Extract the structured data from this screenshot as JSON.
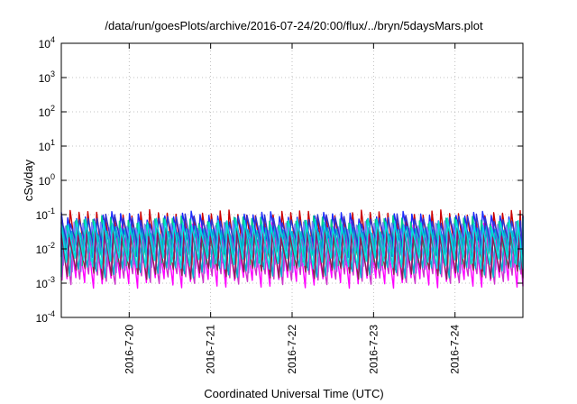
{
  "chart_data": {
    "type": "line",
    "title": "/data/run/goesPlots/archive/2016-07-24/20:00/flux/../bryn/5daysMars.plot",
    "xlabel": "Coordinated Universal Time (UTC)",
    "ylabel": "cSv/day",
    "yscale": "log",
    "ylim": [
      0.0001,
      10000
    ],
    "xlim": [
      "2016-07-19T04:00",
      "2016-07-24T20:00"
    ],
    "grid": true,
    "x_ticks": [
      "2016-7-20",
      "2016-7-21",
      "2016-7-22",
      "2016-7-23",
      "2016-7-24"
    ],
    "y_ticks": [
      {
        "base": "10",
        "exp": "-4"
      },
      {
        "base": "10",
        "exp": "-3"
      },
      {
        "base": "10",
        "exp": "-2"
      },
      {
        "base": "10",
        "exp": "-1"
      },
      {
        "base": "10",
        "exp": "0"
      },
      {
        "base": "10",
        "exp": "1"
      },
      {
        "base": "10",
        "exp": "2"
      },
      {
        "base": "10",
        "exp": "3"
      },
      {
        "base": "10",
        "exp": "4"
      }
    ],
    "y_tick_values": [
      0.0001,
      0.001,
      0.01,
      0.1,
      1,
      10,
      100,
      1000,
      10000
    ],
    "sawtooth_period_hours": 2.6,
    "series": [
      {
        "color": "#cc0000",
        "peak": 0.105,
        "trough": 0.0035
      },
      {
        "color": "#ff00ff",
        "peak": 0.045,
        "trough": 0.0011
      },
      {
        "color": "#1a2bff",
        "peak": 0.095,
        "trough": 0.008
      },
      {
        "color": "#00cc88",
        "peak": 0.07,
        "trough": 0.005
      },
      {
        "color": "#7f7fff",
        "peak": 0.05,
        "trough": 0.003
      },
      {
        "color": "#cc33cc",
        "peak": 0.022,
        "trough": 0.0014
      },
      {
        "color": "#00b0d0",
        "peak": 0.035,
        "trough": 0.0022
      },
      {
        "color": "#3333cc",
        "peak": 0.08,
        "trough": 0.009
      },
      {
        "color": "#8b2252",
        "peak": 0.03,
        "trough": 0.002
      },
      {
        "color": "#00e0e0",
        "peak": 0.06,
        "trough": 0.004
      }
    ]
  }
}
